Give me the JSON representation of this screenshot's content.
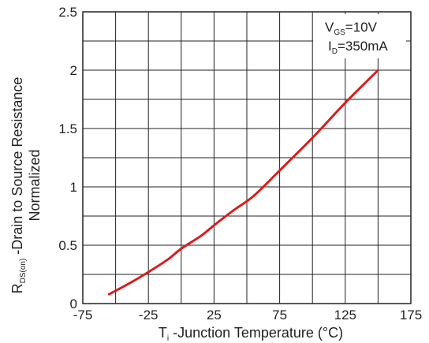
{
  "chart_data": {
    "type": "line",
    "x_ticks": [
      "-75",
      "-25",
      "25",
      "75",
      "125",
      "175"
    ],
    "y_ticks": [
      "0",
      "0.5",
      "1",
      "1.5",
      "2",
      "2.5"
    ],
    "xlim": [
      -75,
      175
    ],
    "ylim": [
      0,
      2.5
    ],
    "grid": true,
    "xlabel": {
      "main": "T",
      "sub": "i",
      "rest": " -Junction Temperature (°C)"
    },
    "ylabel": {
      "main": "R",
      "sub": "DS(on)",
      "rest": " -Drain to Source Resistance",
      "line2": "Normalized"
    },
    "annotations": [
      {
        "main": "V",
        "sub": "GS",
        "rest": "=10V"
      },
      {
        "main": "I",
        "sub": "D",
        "rest": "=350mA"
      }
    ],
    "series": [
      {
        "color": "#d42020",
        "x": [
          -55,
          -40,
          -25,
          -10,
          0,
          15,
          25,
          40,
          55,
          75,
          100,
          125,
          150
        ],
        "y": [
          0.08,
          0.17,
          0.27,
          0.38,
          0.47,
          0.58,
          0.67,
          0.8,
          0.92,
          1.14,
          1.42,
          1.72,
          2.0
        ]
      }
    ]
  }
}
